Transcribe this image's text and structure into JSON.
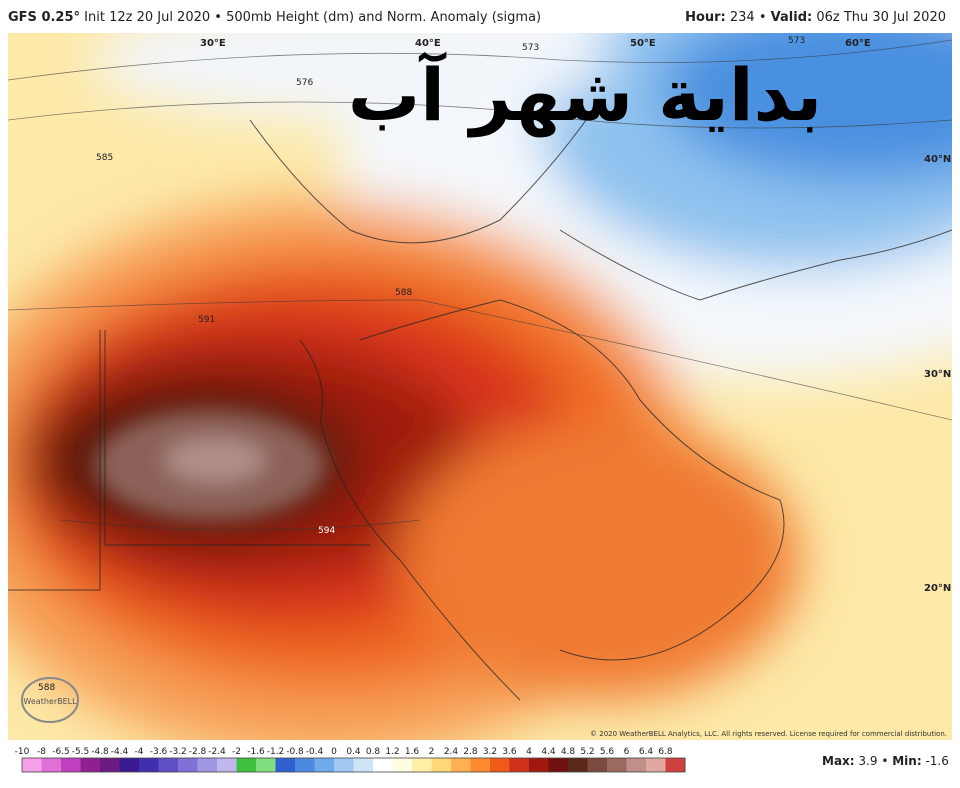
{
  "header": {
    "model": "GFS 0.25°",
    "description": "Init 12z 20 Jul 2020 • 500mb Height (dm) and Norm. Anomaly (sigma)",
    "hour_label": "Hour:",
    "hour": "234",
    "separator": "•",
    "valid_label": "Valid:",
    "valid": "06z Thu 30 Jul 2020"
  },
  "overlay_title": "بداية شهر آب",
  "map": {
    "longitudes": [
      "30°E",
      "40°E",
      "50°E",
      "60°E"
    ],
    "latitudes": [
      "40°N",
      "30°N",
      "20°N"
    ],
    "contours": [
      "576",
      "573",
      "573",
      "585",
      "588",
      "591",
      "594",
      "588"
    ],
    "logo": "WeatherBELL",
    "copyright": "© 2020 WeatherBELL Analytics, LLC. All rights reserved. License required for commercial distribution."
  },
  "colorbar": {
    "labels": [
      "-10",
      "-8",
      "-6.5",
      "-5.5",
      "-4.8",
      "-4.4",
      "-4",
      "-3.6",
      "-3.2",
      "-2.8",
      "-2.4",
      "-2",
      "-1.6",
      "-1.2",
      "-0.8",
      "-0.4",
      "0",
      "0.4",
      "0.8",
      "1.2",
      "1.6",
      "2",
      "2.4",
      "2.8",
      "3.2",
      "3.6",
      "4",
      "4.4",
      "4.8",
      "5.2",
      "5.6",
      "6",
      "6.4",
      "6.8"
    ],
    "colors": [
      "#f5a0e6",
      "#e070d8",
      "#c040c0",
      "#902090",
      "#6a1a80",
      "#3a1a90",
      "#4030b0",
      "#6050c8",
      "#8070d8",
      "#a098e0",
      "#c0b8ec",
      "#40c040",
      "#80e080",
      "#3060d0",
      "#4c8ae0",
      "#70aaea",
      "#a0c8f2",
      "#d0e4f8",
      "#ffffff",
      "#fffde0",
      "#fff0a8",
      "#ffd878",
      "#ffb050",
      "#ff8a30",
      "#f05a18",
      "#d0301a",
      "#a01810",
      "#701010",
      "#5a2818",
      "#7a4a40",
      "#9a6a60",
      "#c09088",
      "#e0a8a0",
      "#d04040"
    ]
  },
  "footer": {
    "max_label": "Max:",
    "max": "3.9",
    "separator": "•",
    "min_label": "Min:",
    "min": "-1.6"
  }
}
